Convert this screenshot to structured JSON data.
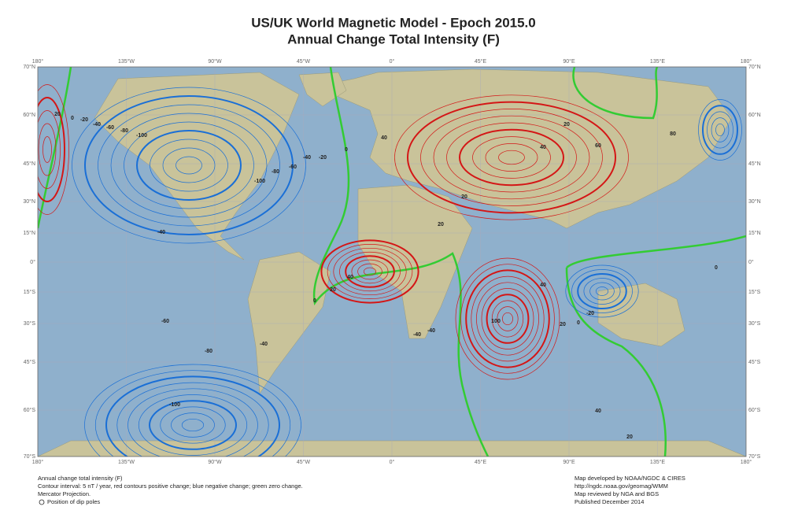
{
  "title": "US/UK World Magnetic Model - Epoch 2015.0",
  "subtitle": "Annual Change Total Intensity (F)",
  "lon_labels": [
    "180°",
    "135°W",
    "90°W",
    "45°W",
    "0°",
    "45°E",
    "90°E",
    "135°E",
    "180°"
  ],
  "lat_labels": [
    "70°N",
    "60°N",
    "45°N",
    "30°N",
    "15°N",
    "0°",
    "15°S",
    "30°S",
    "45°S",
    "60°S",
    "70°S"
  ],
  "contour_labels": [
    "20",
    "0",
    "-20",
    "-40",
    "-60",
    "-80",
    "-100",
    "-100",
    "-80",
    "-60",
    "-40",
    "-20",
    "0",
    "-40",
    "-60",
    "-80",
    "-100",
    "40",
    "20",
    "0",
    "20",
    "40",
    "20",
    "40",
    "60",
    "80",
    "100",
    "40",
    "20",
    "-20",
    "0",
    "20",
    "40",
    "-40",
    "-40",
    "-40",
    "20",
    "0"
  ],
  "footer_left": [
    "Annual change total intensity (F)",
    "Contour interval: 5 nT / year, red contours positive change; blue negative change; green zero change.",
    "Mercator Projection.",
    "Position of dip poles"
  ],
  "footer_right": [
    "Map developed by NOAA/NGDC & CIRES",
    "http://ngdc.noaa.gov/geomag/WMM",
    "Map reviewed by NGA and BGS",
    "Published December 2014"
  ]
}
